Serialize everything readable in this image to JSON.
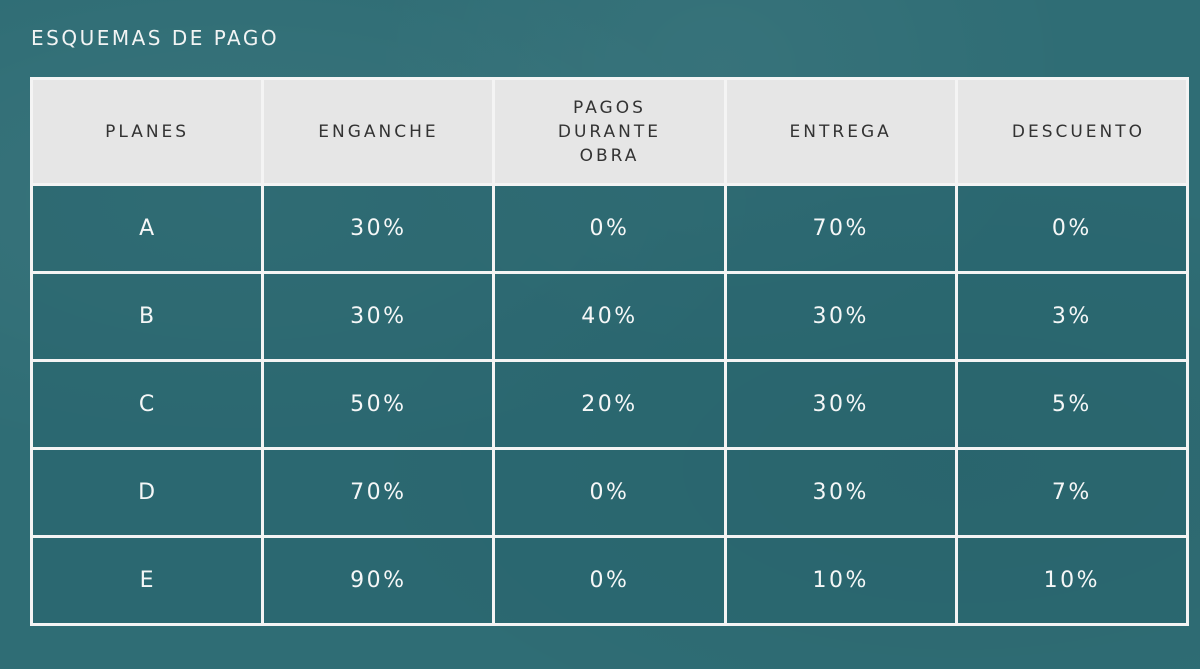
{
  "title": "ESQUEMAS DE PAGO",
  "table": {
    "headers": [
      "PLANES",
      "ENGANCHE",
      "PAGOS DURANTE OBRA",
      "ENTREGA",
      "DESCUENTO"
    ],
    "rows": [
      [
        "A",
        "30%",
        "0%",
        "70%",
        "0%"
      ],
      [
        "B",
        "30%",
        "40%",
        "30%",
        "3%"
      ],
      [
        "C",
        "50%",
        "20%",
        "30%",
        "5%"
      ],
      [
        "D",
        "70%",
        "0%",
        "30%",
        "7%"
      ],
      [
        "E",
        "90%",
        "0%",
        "10%",
        "10%"
      ]
    ]
  },
  "colors": {
    "background": "#2f6d75",
    "header_background": "#e6e6e6",
    "grid_lines": "#f4f4f4"
  }
}
